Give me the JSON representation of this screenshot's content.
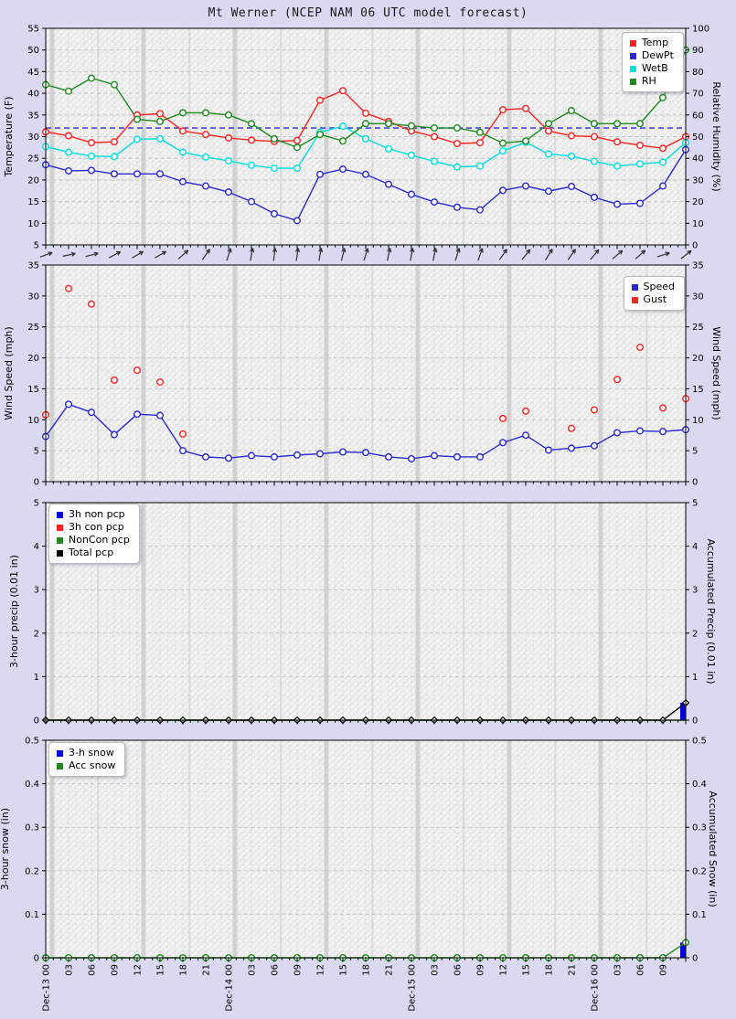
{
  "title": "Mt Werner (NCEP NAM 06 UTC model forecast)",
  "colors": {
    "temp": "#ff2222",
    "dewpt": "#2a2ad0",
    "wetb": "#00dede",
    "rh": "#1e8a1e",
    "speed": "#2a2ad0",
    "gust": "#ff2222",
    "bar_blue": "#0000dd",
    "total_pcp": "#000000",
    "freezing_line": "#4646e0",
    "page_background": "#d9d9f2",
    "gridband": "#c9c9c9"
  },
  "x_axis": {
    "n_points": 29,
    "hours_per_point": 3,
    "tick_labels": [
      "Dec-13 00",
      "03",
      "06",
      "09",
      "12",
      "15",
      "18",
      "21",
      "Dec-14 00",
      "03",
      "06",
      "09",
      "12",
      "15",
      "18",
      "21",
      "Dec-15 00",
      "03",
      "06",
      "09",
      "12",
      "15",
      "18",
      "21",
      "Dec-16 00",
      "03",
      "06",
      "09"
    ]
  },
  "chart_data": [
    {
      "id": "temp_rh",
      "type": "line",
      "ylabel_left": "Temperature (F)",
      "ylabel_right": "Relative Humidity (%)",
      "ylim_left": [
        5,
        55
      ],
      "ylim_right": [
        0,
        100
      ],
      "yticks_left": [
        5,
        10,
        15,
        20,
        25,
        30,
        35,
        40,
        45,
        50,
        55
      ],
      "yticks_right": [
        0,
        10,
        20,
        30,
        40,
        50,
        60,
        70,
        80,
        90,
        100
      ],
      "reference_line": {
        "axis": "left",
        "value": 32
      },
      "series": [
        {
          "name": "Temp",
          "axis": "left",
          "type": "line",
          "marker": "circle",
          "color": "#ff2222",
          "values": [
            31.1,
            30.2,
            28.6,
            28.8,
            35.0,
            35.3,
            31.3,
            30.5,
            29.7,
            29.2,
            28.9,
            29.1,
            38.4,
            40.6,
            35.4,
            33.5,
            31.3,
            30.0,
            28.4,
            28.6,
            36.2,
            36.5,
            31.3,
            30.2,
            30.0,
            28.8,
            28.0,
            27.3,
            30.0
          ]
        },
        {
          "name": "DewPt",
          "axis": "left",
          "type": "line",
          "marker": "circle",
          "color": "#2a2ad0",
          "values": [
            23.5,
            22.1,
            22.2,
            21.4,
            21.4,
            21.4,
            19.6,
            18.6,
            17.2,
            15.0,
            12.2,
            10.6,
            21.3,
            22.5,
            21.3,
            19.0,
            16.7,
            14.9,
            13.7,
            13.1,
            17.6,
            18.6,
            17.4,
            18.5,
            16.0,
            14.4,
            14.6,
            18.6,
            27.0
          ]
        },
        {
          "name": "WetB",
          "axis": "left",
          "type": "line",
          "marker": "circle",
          "color": "#00dede",
          "values": [
            27.7,
            26.4,
            25.5,
            25.4,
            29.4,
            29.5,
            26.4,
            25.3,
            24.4,
            23.4,
            22.7,
            22.7,
            31.0,
            32.4,
            29.5,
            27.2,
            25.7,
            24.3,
            23.0,
            23.2,
            26.7,
            28.7,
            26.0,
            25.5,
            24.3,
            23.2,
            23.7,
            24.1,
            28.6
          ]
        },
        {
          "name": "RH",
          "axis": "right",
          "type": "line",
          "marker": "circle",
          "color": "#1e8a1e",
          "values": [
            74,
            71,
            77,
            74,
            58,
            57,
            61,
            61,
            60,
            56,
            49,
            45,
            51,
            48,
            56,
            56,
            55,
            54,
            54,
            52,
            47,
            48,
            56,
            62,
            56,
            56,
            56,
            68,
            90
          ]
        }
      ]
    },
    {
      "id": "wind",
      "type": "line",
      "ylabel_left": "Wind Speed (mph)",
      "ylabel_right": "Wind Speed (mph)",
      "ylim_left": [
        0,
        35
      ],
      "ylim_right": [
        0,
        35
      ],
      "yticks_left": [
        0,
        5,
        10,
        15,
        20,
        25,
        30,
        35
      ],
      "yticks_right": [
        0,
        5,
        10,
        15,
        20,
        25,
        30,
        35
      ],
      "wind_arrows_deg": [
        20,
        12,
        15,
        28,
        30,
        30,
        42,
        55,
        72,
        80,
        83,
        82,
        80,
        76,
        72,
        78,
        80,
        78,
        73,
        70,
        55,
        52,
        58,
        55,
        50,
        40,
        42,
        18,
        38
      ],
      "series": [
        {
          "name": "Speed",
          "axis": "left",
          "type": "line",
          "marker": "circle",
          "color": "#2a2ad0",
          "values": [
            7.3,
            12.5,
            11.2,
            7.6,
            10.9,
            10.7,
            5.0,
            4.0,
            3.8,
            4.2,
            4.0,
            4.3,
            4.5,
            4.8,
            4.7,
            4.0,
            3.7,
            4.2,
            4.0,
            4.0,
            6.3,
            7.5,
            5.1,
            5.4,
            5.8,
            7.9,
            8.2,
            8.1,
            8.4
          ]
        },
        {
          "name": "Gust",
          "axis": "left",
          "type": "scatter",
          "marker": "circle",
          "color": "#ff2222",
          "values": [
            10.8,
            31.2,
            28.7,
            16.4,
            18.0,
            16.1,
            7.7,
            null,
            null,
            null,
            null,
            null,
            null,
            null,
            null,
            null,
            null,
            null,
            null,
            null,
            10.2,
            11.4,
            null,
            8.6,
            11.6,
            16.5,
            21.7,
            11.9,
            13.4
          ]
        }
      ]
    },
    {
      "id": "precip",
      "type": "bar",
      "ylabel_left": "3-hour precip (0.01 in)",
      "ylabel_right": "Accumulated Precip (0.01 in)",
      "ylim_left": [
        0,
        5
      ],
      "ylim_right": [
        0,
        5
      ],
      "yticks_left": [
        0,
        1,
        2,
        3,
        4,
        5
      ],
      "yticks_right": [
        0,
        1,
        2,
        3,
        4,
        5
      ],
      "series": [
        {
          "name": "3h non pcp",
          "axis": "left",
          "type": "bar",
          "marker": "none",
          "color": "#0000dd",
          "values": [
            0,
            0,
            0,
            0,
            0,
            0,
            0,
            0,
            0,
            0,
            0,
            0,
            0,
            0,
            0,
            0,
            0,
            0,
            0,
            0,
            0,
            0,
            0,
            0,
            0,
            0,
            0,
            0,
            0.4
          ]
        },
        {
          "name": "3h con pcp",
          "axis": "left",
          "type": "bar",
          "marker": "none",
          "color": "#ff2222",
          "values": [
            0,
            0,
            0,
            0,
            0,
            0,
            0,
            0,
            0,
            0,
            0,
            0,
            0,
            0,
            0,
            0,
            0,
            0,
            0,
            0,
            0,
            0,
            0,
            0,
            0,
            0,
            0,
            0,
            0
          ]
        },
        {
          "name": "NonCon pcp",
          "axis": "left",
          "type": "line",
          "marker": "none",
          "color": "#1e8a1e",
          "values": [
            0,
            0,
            0,
            0,
            0,
            0,
            0,
            0,
            0,
            0,
            0,
            0,
            0,
            0,
            0,
            0,
            0,
            0,
            0,
            0,
            0,
            0,
            0,
            0,
            0,
            0,
            0,
            0,
            0
          ]
        },
        {
          "name": "Total pcp",
          "axis": "left",
          "type": "line",
          "marker": "diamond",
          "color": "#000000",
          "values": [
            0,
            0,
            0,
            0,
            0,
            0,
            0,
            0,
            0,
            0,
            0,
            0,
            0,
            0,
            0,
            0,
            0,
            0,
            0,
            0,
            0,
            0,
            0,
            0,
            0,
            0,
            0,
            0,
            0.4
          ]
        }
      ]
    },
    {
      "id": "snow",
      "type": "bar",
      "ylabel_left": "3-hour snow (in)",
      "ylabel_right": "Accumulated Snow (in)",
      "ylim_left": [
        0,
        0.5
      ],
      "ylim_right": [
        0,
        0.5
      ],
      "yticks_left": [
        "0",
        "0.1",
        "0.2",
        "0.3",
        "0.4",
        "0.5"
      ],
      "yticks_right": [
        "0",
        "0.1",
        "0.2",
        "0.3",
        "0.4",
        "0.5"
      ],
      "series": [
        {
          "name": "3-h snow",
          "axis": "left",
          "type": "bar",
          "marker": "none",
          "color": "#0000dd",
          "values": [
            0,
            0,
            0,
            0,
            0,
            0,
            0,
            0,
            0,
            0,
            0,
            0,
            0,
            0,
            0,
            0,
            0,
            0,
            0,
            0,
            0,
            0,
            0,
            0,
            0,
            0,
            0,
            0,
            0.035
          ]
        },
        {
          "name": "Acc snow",
          "axis": "left",
          "type": "line",
          "marker": "circle",
          "color": "#1e8a1e",
          "values": [
            0,
            0,
            0,
            0,
            0,
            0,
            0,
            0,
            0,
            0,
            0,
            0,
            0,
            0,
            0,
            0,
            0,
            0,
            0,
            0,
            0,
            0,
            0,
            0,
            0,
            0,
            0,
            0,
            0.035
          ]
        }
      ]
    }
  ]
}
